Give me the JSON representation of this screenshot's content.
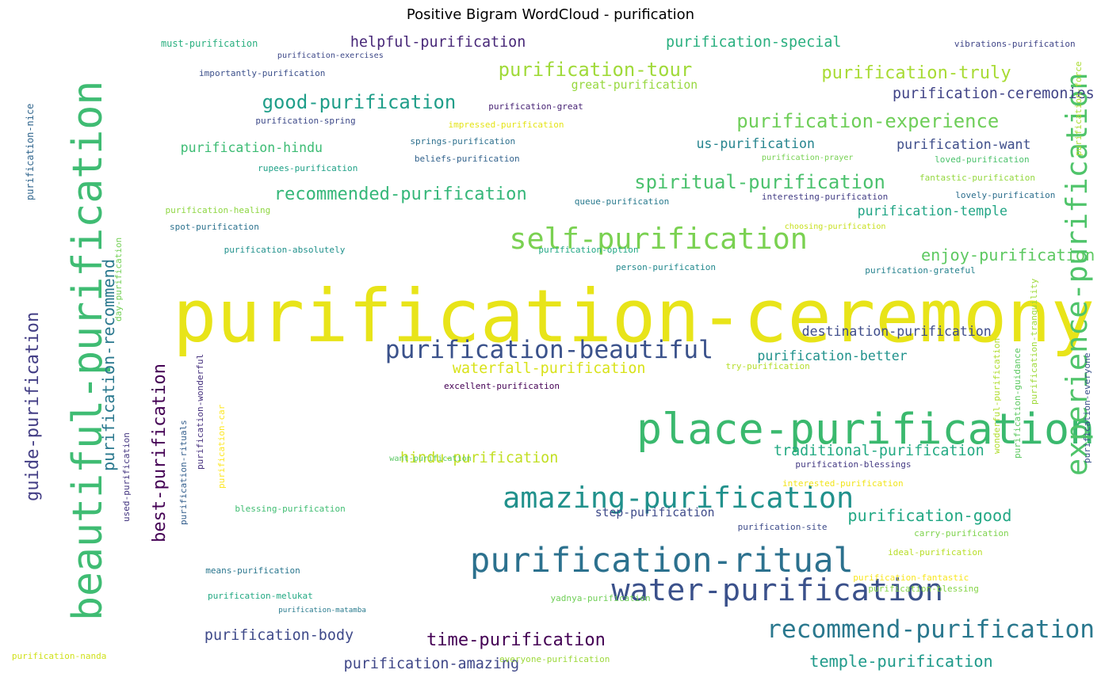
{
  "chart_data": {
    "type": "wordcloud",
    "title": "Positive Bigram WordCloud - purification",
    "words": [
      {
        "text": "purification-ceremony",
        "weight": 1.0,
        "color": "#e8e419",
        "x": 0.566,
        "y": 0.389,
        "r": 0
      },
      {
        "text": "place-purification",
        "weight": 0.58,
        "color": "#3ab96e",
        "x": 0.579,
        "y": 0.585,
        "r": 0
      },
      {
        "text": "beautiful-purification",
        "weight": 0.56,
        "color": "#3fbc73",
        "x": 0.057,
        "y": 0.497,
        "r": 1
      },
      {
        "text": "experience-purification",
        "weight": 0.4,
        "color": "#4fc46a",
        "x": 0.971,
        "y": 0.379,
        "r": 1
      },
      {
        "text": "purification-ritual",
        "weight": 0.46,
        "color": "#2c718e",
        "x": 0.426,
        "y": 0.795,
        "r": 0
      },
      {
        "text": "water-purification",
        "weight": 0.42,
        "color": "#3b518b",
        "x": 0.556,
        "y": 0.843,
        "r": 0
      },
      {
        "text": "amazing-purification",
        "weight": 0.4,
        "color": "#21918c",
        "x": 0.456,
        "y": 0.702,
        "r": 0
      },
      {
        "text": "self-purification",
        "weight": 0.4,
        "color": "#7ad151",
        "x": 0.462,
        "y": 0.304,
        "r": 0
      },
      {
        "text": "recommend-purification",
        "weight": 0.34,
        "color": "#2a788e",
        "x": 0.703,
        "y": 0.908,
        "r": 0
      },
      {
        "text": "purification-beautiful",
        "weight": 0.34,
        "color": "#3b528b",
        "x": 0.348,
        "y": 0.478,
        "r": 0
      },
      {
        "text": "guide-purification",
        "weight": 0.24,
        "color": "#433e85",
        "x": 0.017,
        "y": 0.583,
        "r": 1
      },
      {
        "text": "best-purification",
        "weight": 0.24,
        "color": "#440154",
        "x": 0.133,
        "y": 0.654,
        "r": 1
      },
      {
        "text": "purification-recommend",
        "weight": 0.22,
        "color": "#2a788e",
        "x": 0.087,
        "y": 0.519,
        "r": 1
      },
      {
        "text": "purification-tour",
        "weight": 0.26,
        "color": "#a0da39",
        "x": 0.452,
        "y": 0.052,
        "r": 0
      },
      {
        "text": "purification-experience",
        "weight": 0.26,
        "color": "#6ece58",
        "x": 0.671,
        "y": 0.131,
        "r": 0
      },
      {
        "text": "spiritual-purification",
        "weight": 0.26,
        "color": "#4ac16d",
        "x": 0.577,
        "y": 0.225,
        "r": 0
      },
      {
        "text": "good-purification",
        "weight": 0.26,
        "color": "#1f9e89",
        "x": 0.235,
        "y": 0.102,
        "r": 0
      },
      {
        "text": "purification-truly",
        "weight": 0.24,
        "color": "#a8db34",
        "x": 0.749,
        "y": 0.058,
        "r": 0
      },
      {
        "text": "recommended-purification",
        "weight": 0.24,
        "color": "#35b779",
        "x": 0.246,
        "y": 0.244,
        "r": 0
      },
      {
        "text": "time-purification",
        "weight": 0.24,
        "color": "#440154",
        "x": 0.386,
        "y": 0.93,
        "r": 0
      },
      {
        "text": "purification-good",
        "weight": 0.22,
        "color": "#22a884",
        "x": 0.773,
        "y": 0.739,
        "r": 0
      },
      {
        "text": "enjoy-purification",
        "weight": 0.22,
        "color": "#5ec962",
        "x": 0.842,
        "y": 0.338,
        "r": 0
      },
      {
        "text": "helpful-purification",
        "weight": 0.2,
        "color": "#482878",
        "x": 0.316,
        "y": 0.013,
        "r": 0
      },
      {
        "text": "purification-special",
        "weight": 0.2,
        "color": "#29af7f",
        "x": 0.606,
        "y": 0.013,
        "r": 0
      },
      {
        "text": "purification-ceremonies",
        "weight": 0.2,
        "color": "#414487",
        "x": 0.866,
        "y": 0.092,
        "r": 0
      },
      {
        "text": "purification-body",
        "weight": 0.2,
        "color": "#3e4989",
        "x": 0.182,
        "y": 0.925,
        "r": 0
      },
      {
        "text": "purification-amazing",
        "weight": 0.2,
        "color": "#3f4788",
        "x": 0.31,
        "y": 0.968,
        "r": 0
      },
      {
        "text": "temple-purification",
        "weight": 0.22,
        "color": "#1f9a8a",
        "x": 0.738,
        "y": 0.962,
        "r": 0
      },
      {
        "text": "hindu-purification",
        "weight": 0.2,
        "color": "#c2df23",
        "x": 0.362,
        "y": 0.652,
        "r": 0
      },
      {
        "text": "traditional-purification",
        "weight": 0.2,
        "color": "#24aa83",
        "x": 0.705,
        "y": 0.641,
        "r": 0
      },
      {
        "text": "waterfall-purification",
        "weight": 0.2,
        "color": "#d8e219",
        "x": 0.41,
        "y": 0.514,
        "r": 0
      },
      {
        "text": "destination-purification",
        "weight": 0.18,
        "color": "#3e4c8a",
        "x": 0.731,
        "y": 0.459,
        "r": 0
      },
      {
        "text": "purification-better",
        "weight": 0.18,
        "color": "#20928c",
        "x": 0.69,
        "y": 0.496,
        "r": 0
      },
      {
        "text": "purification-temple",
        "weight": 0.18,
        "color": "#21a585",
        "x": 0.782,
        "y": 0.274,
        "r": 0
      },
      {
        "text": "purification-hindu",
        "weight": 0.18,
        "color": "#3dbc74",
        "x": 0.16,
        "y": 0.177,
        "r": 0
      },
      {
        "text": "us-purification",
        "weight": 0.18,
        "color": "#25848e",
        "x": 0.634,
        "y": 0.17,
        "r": 0
      },
      {
        "text": "purification-want",
        "weight": 0.18,
        "color": "#3d4d8a",
        "x": 0.818,
        "y": 0.172,
        "r": 0
      },
      {
        "text": "step-purification",
        "weight": 0.16,
        "color": "#3e4a89",
        "x": 0.541,
        "y": 0.738,
        "r": 0
      },
      {
        "text": "great-purification",
        "weight": 0.16,
        "color": "#97d83f",
        "x": 0.519,
        "y": 0.082,
        "r": 0
      },
      {
        "text": "purification-force",
        "weight": 0.12,
        "color": "#aadc32",
        "x": 0.981,
        "y": 0.125,
        "r": 1
      },
      {
        "text": "purification-nice",
        "weight": 0.13,
        "color": "#31668e",
        "x": 0.018,
        "y": 0.192,
        "r": 1
      },
      {
        "text": "purification-tranquility",
        "weight": 0.12,
        "color": "#9fda3a",
        "x": 0.94,
        "y": 0.484,
        "r": 1
      },
      {
        "text": "wonderful-purification",
        "weight": 0.12,
        "color": "#b0dd2f",
        "x": 0.906,
        "y": 0.567,
        "r": 1
      },
      {
        "text": "purification-guidance",
        "weight": 0.12,
        "color": "#5ec962",
        "x": 0.925,
        "y": 0.578,
        "r": 1
      },
      {
        "text": "purification-everyone",
        "weight": 0.12,
        "color": "#3b528b",
        "x": 0.989,
        "y": 0.586,
        "r": 1
      },
      {
        "text": "purification-wonderful",
        "weight": 0.12,
        "color": "#46317e",
        "x": 0.174,
        "y": 0.591,
        "r": 1
      },
      {
        "text": "purification-car",
        "weight": 0.12,
        "color": "#fde725",
        "x": 0.194,
        "y": 0.645,
        "r": 1
      },
      {
        "text": "purification-rituals",
        "weight": 0.12,
        "color": "#355f8d",
        "x": 0.159,
        "y": 0.684,
        "r": 1
      },
      {
        "text": "used-purification",
        "weight": 0.12,
        "color": "#453781",
        "x": 0.106,
        "y": 0.691,
        "r": 1
      },
      {
        "text": "day-purification",
        "weight": 0.12,
        "color": "#73d056",
        "x": 0.099,
        "y": 0.388,
        "r": 1
      },
      {
        "text": "must-purification",
        "weight": 0.13,
        "color": "#29af7f",
        "x": 0.142,
        "y": 0.019,
        "r": 0
      },
      {
        "text": "purification-exercises",
        "weight": 0.11,
        "color": "#3e4989",
        "x": 0.249,
        "y": 0.039,
        "r": 0
      },
      {
        "text": "importantly-purification",
        "weight": 0.12,
        "color": "#3c508b",
        "x": 0.177,
        "y": 0.065,
        "r": 0
      },
      {
        "text": "vibrations-purification",
        "weight": 0.12,
        "color": "#404688",
        "x": 0.871,
        "y": 0.019,
        "r": 0
      },
      {
        "text": "purification-great",
        "weight": 0.12,
        "color": "#482475",
        "x": 0.443,
        "y": 0.115,
        "r": 0
      },
      {
        "text": "purification-spring",
        "weight": 0.12,
        "color": "#3e4a89",
        "x": 0.229,
        "y": 0.138,
        "r": 0
      },
      {
        "text": "impressed-purification",
        "weight": 0.12,
        "color": "#e5e419",
        "x": 0.406,
        "y": 0.143,
        "r": 0
      },
      {
        "text": "springs-purification",
        "weight": 0.12,
        "color": "#2d708e",
        "x": 0.371,
        "y": 0.169,
        "r": 0
      },
      {
        "text": "beliefs-purification",
        "weight": 0.12,
        "color": "#33638d",
        "x": 0.375,
        "y": 0.196,
        "r": 0
      },
      {
        "text": "purification-prayer",
        "weight": 0.11,
        "color": "#77d153",
        "x": 0.694,
        "y": 0.196,
        "r": 0
      },
      {
        "text": "loved-purification",
        "weight": 0.12,
        "color": "#4cc26c",
        "x": 0.853,
        "y": 0.197,
        "r": 0
      },
      {
        "text": "rupees-purification",
        "weight": 0.12,
        "color": "#1fa187",
        "x": 0.231,
        "y": 0.211,
        "r": 0
      },
      {
        "text": "fantastic-purification",
        "weight": 0.12,
        "color": "#95d840",
        "x": 0.839,
        "y": 0.225,
        "r": 0
      },
      {
        "text": "interesting-purification",
        "weight": 0.12,
        "color": "#433e85",
        "x": 0.694,
        "y": 0.254,
        "r": 0
      },
      {
        "text": "lovely-purification",
        "weight": 0.12,
        "color": "#2e6f8e",
        "x": 0.872,
        "y": 0.252,
        "r": 0
      },
      {
        "text": "queue-purification",
        "weight": 0.12,
        "color": "#297a8e",
        "x": 0.522,
        "y": 0.262,
        "r": 0
      },
      {
        "text": "purification-healing",
        "weight": 0.12,
        "color": "#8fd744",
        "x": 0.146,
        "y": 0.275,
        "r": 0
      },
      {
        "text": "spot-purification",
        "weight": 0.12,
        "color": "#2c728e",
        "x": 0.15,
        "y": 0.301,
        "r": 0
      },
      {
        "text": "choosing-purification",
        "weight": 0.11,
        "color": "#c8e020",
        "x": 0.715,
        "y": 0.302,
        "r": 0
      },
      {
        "text": "purification-absolutely",
        "weight": 0.12,
        "color": "#21918c",
        "x": 0.2,
        "y": 0.336,
        "r": 0
      },
      {
        "text": "purification-option",
        "weight": 0.12,
        "color": "#22a785",
        "x": 0.489,
        "y": 0.336,
        "r": 0
      },
      {
        "text": "person-purification",
        "weight": 0.12,
        "color": "#23898e",
        "x": 0.56,
        "y": 0.362,
        "r": 0
      },
      {
        "text": "purification-grateful",
        "weight": 0.12,
        "color": "#26828e",
        "x": 0.789,
        "y": 0.367,
        "r": 0
      },
      {
        "text": "try-purification",
        "weight": 0.12,
        "color": "#b5de2b",
        "x": 0.661,
        "y": 0.515,
        "r": 0
      },
      {
        "text": "excellent-purification",
        "weight": 0.12,
        "color": "#440154",
        "x": 0.402,
        "y": 0.545,
        "r": 0
      },
      {
        "text": "want-purification",
        "weight": 0.11,
        "color": "#5ac864",
        "x": 0.352,
        "y": 0.658,
        "r": 0
      },
      {
        "text": "purification-blessings",
        "weight": 0.12,
        "color": "#443a83",
        "x": 0.725,
        "y": 0.666,
        "r": 0
      },
      {
        "text": "interested-purification",
        "weight": 0.12,
        "color": "#f1e51d",
        "x": 0.713,
        "y": 0.695,
        "r": 0
      },
      {
        "text": "blessing-purification",
        "weight": 0.12,
        "color": "#40bd72",
        "x": 0.21,
        "y": 0.733,
        "r": 0
      },
      {
        "text": "purification-site",
        "weight": 0.12,
        "color": "#3e4c8a",
        "x": 0.672,
        "y": 0.762,
        "r": 0
      },
      {
        "text": "carry-purification",
        "weight": 0.12,
        "color": "#7fd34e",
        "x": 0.834,
        "y": 0.771,
        "r": 0
      },
      {
        "text": "ideal-purification",
        "weight": 0.12,
        "color": "#b8de29",
        "x": 0.81,
        "y": 0.801,
        "r": 0
      },
      {
        "text": "means-purification",
        "weight": 0.12,
        "color": "#2a768e",
        "x": 0.183,
        "y": 0.828,
        "r": 0
      },
      {
        "text": "purification-fantastic",
        "weight": 0.12,
        "color": "#f8e621",
        "x": 0.778,
        "y": 0.84,
        "r": 0
      },
      {
        "text": "purification-melukat",
        "weight": 0.12,
        "color": "#23a983",
        "x": 0.185,
        "y": 0.868,
        "r": 0
      },
      {
        "text": "yadnya-purification",
        "weight": 0.12,
        "color": "#70cf57",
        "x": 0.5,
        "y": 0.871,
        "r": 0
      },
      {
        "text": "purification-blessing",
        "weight": 0.12,
        "color": "#86d549",
        "x": 0.792,
        "y": 0.856,
        "r": 0
      },
      {
        "text": "purification-matamba",
        "weight": 0.1,
        "color": "#297b8e",
        "x": 0.25,
        "y": 0.89,
        "r": 0
      },
      {
        "text": "purification-nanda",
        "weight": 0.12,
        "color": "#d0e11c",
        "x": 0.005,
        "y": 0.96,
        "r": 0
      },
      {
        "text": "everyone-purification",
        "weight": 0.12,
        "color": "#9dd93b",
        "x": 0.453,
        "y": 0.965,
        "r": 0
      }
    ]
  }
}
